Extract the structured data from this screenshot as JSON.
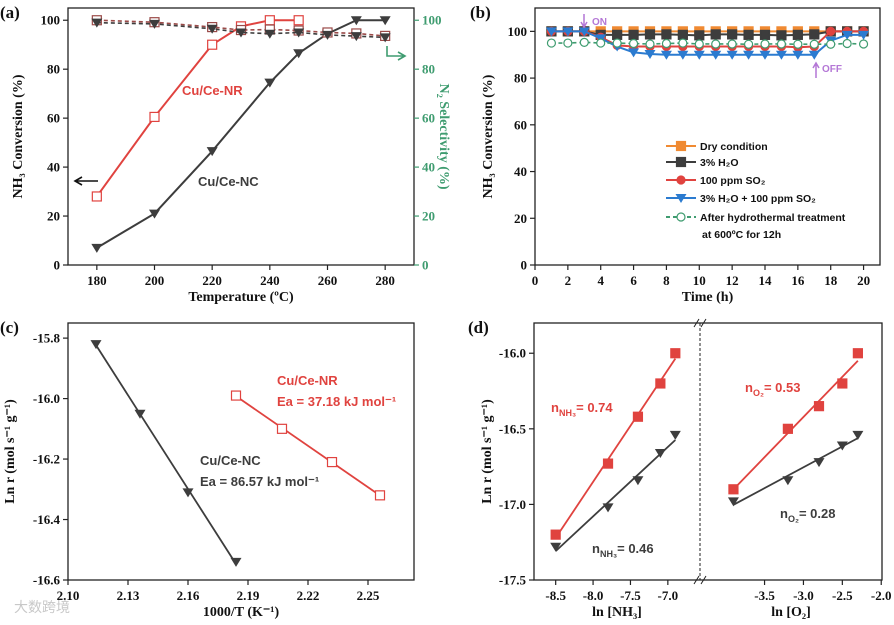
{
  "watermark": "大数跨境",
  "colors": {
    "red": "#e0433f",
    "dark": "#3d3d3d",
    "green": "#3f9c70",
    "orange": "#f08a32",
    "blue": "#2b7bd0",
    "purple": "#b477d6",
    "pinkdash": "#9a4a48"
  },
  "chart_data": [
    {
      "panel": "(a)",
      "type": "line",
      "xlabel": "Temperature (ºC)",
      "ylabel": "NH₃ Conversion (%)",
      "y2label": "N₂ Selectivity (%)",
      "xlim": [
        170,
        290
      ],
      "ylim": [
        0,
        105
      ],
      "y2lim": [
        0,
        105
      ],
      "xticks": [
        "180",
        "200",
        "220",
        "240",
        "260",
        "280"
      ],
      "yticks": [
        "0",
        "20",
        "40",
        "60",
        "80",
        "100"
      ],
      "y2ticks": [
        "0",
        "20",
        "40",
        "60",
        "80",
        "100"
      ],
      "series": [
        {
          "name": "Cu/Ce-NR conversion",
          "color": "red",
          "marker": "square-open",
          "x": [
            180,
            200,
            220,
            230,
            240,
            250
          ],
          "y": [
            28,
            60.5,
            90,
            97.5,
            100,
            100
          ]
        },
        {
          "name": "Cu/Ce-NC conversion",
          "color": "dark",
          "marker": "triangle",
          "x": [
            180,
            200,
            220,
            240,
            250,
            260,
            270,
            280
          ],
          "y": [
            7,
            21,
            46.5,
            74.5,
            86.5,
            94.5,
            100,
            100
          ]
        },
        {
          "name": "Cu/Ce-NR N2 selectivity",
          "color": "pinkdash",
          "marker": "square-open",
          "dashed": true,
          "x": [
            180,
            200,
            220,
            230,
            240,
            250,
            260,
            270,
            280
          ],
          "y": [
            100,
            99.2,
            97.2,
            96,
            96.2,
            95.8,
            95,
            94.6,
            93.6
          ]
        },
        {
          "name": "Cu/Ce-NC N2 selectivity",
          "color": "dark",
          "marker": "triangle",
          "dashed": true,
          "x": [
            180,
            200,
            220,
            230,
            240,
            250,
            260,
            270,
            280
          ],
          "y": [
            99,
            98.5,
            96.5,
            95,
            94.5,
            95,
            94,
            93.5,
            93
          ]
        }
      ],
      "annotations": [
        "Cu/Ce-NR",
        "Cu/Ce-NC"
      ]
    },
    {
      "panel": "(b)",
      "type": "line",
      "xlabel": "Time (h)",
      "ylabel": "NH₃ Conversion (%)",
      "xlim": [
        0,
        21
      ],
      "ylim": [
        0,
        110
      ],
      "xticks": [
        "0",
        "2",
        "4",
        "6",
        "8",
        "10",
        "12",
        "14",
        "16",
        "18",
        "20"
      ],
      "yticks": [
        "0",
        "20",
        "40",
        "60",
        "80",
        "100"
      ],
      "series": [
        {
          "name": "Dry condition",
          "color": "orange",
          "marker": "square",
          "x": [
            1,
            2,
            3,
            4,
            5,
            6,
            7,
            8,
            9,
            10,
            11,
            12,
            13,
            14,
            15,
            16,
            17,
            18,
            19,
            20
          ],
          "y": [
            100,
            100,
            100,
            100,
            100,
            100,
            100,
            100,
            100,
            100,
            100,
            100,
            100,
            100,
            100,
            100,
            100,
            100,
            100,
            100
          ]
        },
        {
          "name": "3% H₂O",
          "color": "dark",
          "marker": "square",
          "x": [
            1,
            2,
            3,
            4,
            5,
            6,
            7,
            8,
            9,
            10,
            11,
            12,
            13,
            14,
            15,
            16,
            17,
            18,
            19,
            20
          ],
          "y": [
            100,
            100,
            100,
            98.5,
            98.5,
            98.5,
            98.7,
            98.7,
            98.5,
            98.3,
            98.7,
            98.7,
            98.5,
            98.5,
            98.3,
            98.5,
            98.7,
            100,
            100,
            100
          ]
        },
        {
          "name": "100 ppm SO₂",
          "color": "red",
          "marker": "circle",
          "x": [
            1,
            2,
            3,
            4,
            5,
            6,
            7,
            8,
            9,
            10,
            11,
            12,
            13,
            14,
            15,
            16,
            17,
            18,
            19,
            20
          ],
          "y": [
            100,
            100,
            100,
            97.5,
            94,
            93.5,
            93.5,
            93.5,
            93.5,
            93.5,
            93.5,
            93.5,
            93.5,
            93.5,
            93.5,
            93.2,
            93.5,
            100,
            100,
            100
          ]
        },
        {
          "name": "3% H₂O + 100 ppm SO₂",
          "color": "blue",
          "marker": "triangle",
          "x": [
            1,
            2,
            3,
            4,
            5,
            6,
            7,
            8,
            9,
            10,
            11,
            12,
            13,
            14,
            15,
            16,
            17,
            18,
            19,
            20
          ],
          "y": [
            100,
            100,
            100,
            97,
            93.5,
            91,
            90.3,
            90,
            90,
            90,
            90,
            90,
            90,
            90,
            90,
            90,
            90,
            96,
            98.5,
            98.5
          ]
        },
        {
          "name": "After hydrothermal treatment",
          "name2": "at 600ºC for 12h",
          "color": "green",
          "marker": "circle-open",
          "dashed": true,
          "x": [
            1,
            2,
            3,
            4,
            5,
            6,
            7,
            8,
            9,
            10,
            11,
            12,
            13,
            14,
            15,
            16,
            17,
            18,
            19,
            20
          ],
          "y": [
            95,
            95,
            95.3,
            95,
            95,
            94.8,
            94.6,
            94.8,
            95,
            94.6,
            94.6,
            94.6,
            94.5,
            94.6,
            94.6,
            94.5,
            94.5,
            94.5,
            94.8,
            94.6
          ]
        }
      ],
      "annotations": [
        "ON",
        "OFF"
      ],
      "legend": "lower-right"
    },
    {
      "panel": "(c)",
      "type": "scatter",
      "xlabel": "1000/T (K⁻¹)",
      "ylabel": "Ln r (mol s⁻¹ g⁻¹)",
      "xlim": [
        2.1,
        2.273
      ],
      "ylim": [
        -16.6,
        -15.75
      ],
      "xticks": [
        "2.10",
        "2.13",
        "2.16",
        "2.19",
        "2.22",
        "2.25"
      ],
      "yticks": [
        "-16.6",
        "-16.4",
        "-16.2",
        "-16.0",
        "-15.8"
      ],
      "series": [
        {
          "name": "Cu/Ce-NC",
          "color": "dark",
          "marker": "triangle",
          "fit": true,
          "x": [
            2.114,
            2.136,
            2.16,
            2.184
          ],
          "y": [
            -15.82,
            -16.05,
            -16.31,
            -16.54
          ]
        },
        {
          "name": "Cu/Ce-NR",
          "color": "red",
          "marker": "square-open",
          "fit": true,
          "x": [
            2.184,
            2.207,
            2.232,
            2.256
          ],
          "y": [
            -15.99,
            -16.1,
            -16.21,
            -16.32
          ]
        }
      ],
      "annotations": [
        "Cu/Ce-NR",
        "Ea = 37.18 kJ mol⁻¹",
        "Cu/Ce-NC",
        "Ea = 86.57 kJ mol⁻¹"
      ]
    },
    {
      "panel": "(d)",
      "type": "scatter",
      "xlabel": "ln [NH₃]",
      "x2label": "ln [O₂]",
      "ylabel": "Ln r (mol s⁻¹ g⁻¹)",
      "xlim": [
        -8.79,
        -6.57
      ],
      "x2lim": [
        -4.33,
        -1.99
      ],
      "ylim": [
        -17.5,
        -15.8
      ],
      "xticks": [
        "-8.5",
        "-8.0",
        "-7.5",
        "-7.0"
      ],
      "x2ticks": [
        "-3.5",
        "-3.0",
        "-2.5",
        "-2.0"
      ],
      "yticks": [
        "-17.5",
        "-17.0",
        "-16.5",
        "-16.0"
      ],
      "series": [
        {
          "name": "Cu/Ce-NR NH3",
          "group": 0,
          "color": "red",
          "marker": "square",
          "fit": true,
          "x": [
            -8.5,
            -7.8,
            -7.4,
            -7.1,
            -6.9
          ],
          "y": [
            -17.2,
            -16.73,
            -16.42,
            -16.2,
            -16.0
          ]
        },
        {
          "name": "Cu/Ce-NC NH3",
          "group": 0,
          "color": "dark",
          "marker": "triangle",
          "fit": true,
          "x": [
            -8.5,
            -7.8,
            -7.4,
            -7.1,
            -6.9
          ],
          "y": [
            -17.28,
            -17.02,
            -16.84,
            -16.66,
            -16.54
          ]
        },
        {
          "name": "Cu/Ce-NR O2",
          "group": 1,
          "color": "red",
          "marker": "square",
          "fit": true,
          "x": [
            -3.9,
            -3.2,
            -2.8,
            -2.5,
            -2.3
          ],
          "y": [
            -16.9,
            -16.5,
            -16.35,
            -16.2,
            -16.0
          ]
        },
        {
          "name": "Cu/Ce-NC O2",
          "group": 1,
          "color": "dark",
          "marker": "triangle",
          "fit": true,
          "x": [
            -3.9,
            -3.2,
            -2.8,
            -2.5,
            -2.3
          ],
          "y": [
            -16.98,
            -16.84,
            -16.72,
            -16.61,
            -16.54
          ]
        }
      ],
      "annotations": [
        {
          "main": "n",
          "sub": "NH₃",
          "rest": "= 0.74"
        },
        {
          "main": "n",
          "sub": "NH₃",
          "rest": "= 0.46"
        },
        {
          "main": "n",
          "sub": "O₂",
          "rest": "= 0.53"
        },
        {
          "main": "n",
          "sub": "O₂",
          "rest": "= 0.28"
        }
      ]
    }
  ]
}
